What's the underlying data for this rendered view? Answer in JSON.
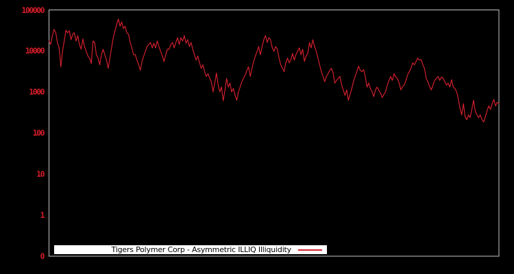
{
  "colors": {
    "background": "#000000",
    "frame": "#c8c8c8",
    "tick_label": "#d41d28",
    "line": "#d2202d",
    "legend_bg": "#ffffff",
    "legend_text": "#000000"
  },
  "chart_data": {
    "type": "line",
    "title": "",
    "legend": {
      "label": "Tigers Polymer Corp - Asymmetric ILLIQ Illiquidity",
      "position": "bottom-left"
    },
    "xaxis": {
      "labels_visible": false
    },
    "yaxis": {
      "scale": "log",
      "min": 0.1,
      "max": 100000,
      "grid": false,
      "ticks": [
        {
          "label": "100000",
          "value": 100000
        },
        {
          "label": "10000",
          "value": 10000
        },
        {
          "label": "1000",
          "value": 1000
        },
        {
          "label": "100",
          "value": 100
        },
        {
          "label": "10",
          "value": 10
        },
        {
          "label": "1",
          "value": 1
        },
        {
          "label": "0",
          "value": 0.1
        }
      ]
    },
    "series": [
      {
        "name": "Tigers Polymer Corp - Asymmetric ILLIQ Illiquidity",
        "color": "#d2202d",
        "values": [
          17500,
          14400,
          23700,
          33500,
          27700,
          16100,
          11900,
          4100,
          9800,
          17500,
          32000,
          27700,
          31000,
          18800,
          25600,
          27700,
          17500,
          23700,
          14400,
          11000,
          19600,
          12800,
          9800,
          7500,
          6700,
          4950,
          17500,
          16100,
          8100,
          6700,
          4600,
          8100,
          11000,
          8100,
          6000,
          3770,
          6700,
          11900,
          21000,
          31000,
          45000,
          60000,
          40000,
          51000,
          35000,
          40000,
          27700,
          25600,
          16100,
          11900,
          8100,
          8100,
          6000,
          4600,
          3370,
          5550,
          7500,
          9800,
          12800,
          14400,
          16100,
          11900,
          15500,
          11900,
          17500,
          12800,
          9800,
          7500,
          5550,
          8100,
          11000,
          11000,
          14400,
          16100,
          11900,
          16100,
          21000,
          14400,
          21000,
          17500,
          23700,
          15500,
          18800,
          12800,
          16100,
          11000,
          8100,
          6000,
          7500,
          5150,
          3770,
          4600,
          3130,
          2400,
          2800,
          2150,
          1780,
          1010,
          1650,
          2900,
          1470,
          1010,
          1320,
          610,
          1100,
          2150,
          1320,
          1650,
          1010,
          1220,
          830,
          630,
          1010,
          1320,
          1780,
          2150,
          2600,
          3370,
          4100,
          2400,
          3770,
          5550,
          7500,
          9800,
          12800,
          8100,
          12800,
          18800,
          23700,
          16100,
          21000,
          18800,
          11900,
          9800,
          12800,
          11000,
          6700,
          4600,
          3770,
          3130,
          5150,
          6700,
          5150,
          6000,
          8700,
          6000,
          8100,
          9800,
          11900,
          8100,
          11000,
          5550,
          7500,
          8700,
          16100,
          11900,
          18800,
          12800,
          9800,
          6700,
          4600,
          3130,
          2400,
          1780,
          2400,
          2800,
          3370,
          3770,
          2900,
          1650,
          1920,
          2150,
          2400,
          1470,
          1130,
          830,
          1130,
          630,
          875,
          1220,
          1780,
          2400,
          3130,
          4270,
          3370,
          3130,
          3500,
          2400,
          1320,
          1650,
          1220,
          1010,
          770,
          1130,
          1320,
          1100,
          940,
          740,
          875,
          1010,
          1470,
          1920,
          2400,
          1920,
          2800,
          2320,
          2150,
          1650,
          1130,
          1360,
          1470,
          1920,
          2600,
          3130,
          3770,
          5150,
          4600,
          5550,
          6700,
          6000,
          6200,
          4600,
          3770,
          2150,
          1780,
          1360,
          1130,
          1470,
          1920,
          2150,
          2400,
          1920,
          2320,
          2150,
          1780,
          1470,
          1650,
          1320,
          2000,
          1320,
          1220,
          1010,
          680,
          405,
          277,
          520,
          256,
          211,
          277,
          240,
          376,
          630,
          350,
          277,
          240,
          277,
          211,
          186,
          256,
          350,
          460,
          376,
          520,
          655,
          460,
          560,
          520
        ]
      }
    ]
  }
}
